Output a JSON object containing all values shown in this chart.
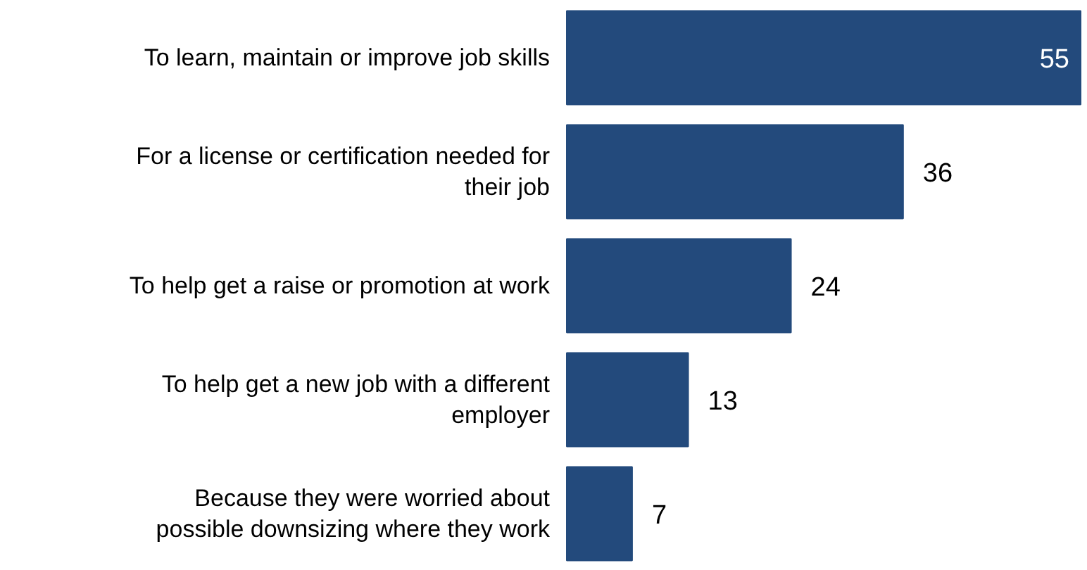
{
  "chart_data": {
    "type": "bar",
    "orientation": "horizontal",
    "data_labels": true,
    "color": "#234a7c",
    "categories": [
      "To learn, maintain or improve job skills",
      "For a license or certification needed for\ntheir job",
      "To help get a raise or promotion at work",
      "To help get a new job with a different\nemployer",
      "Because they were worried about\npossible downsizing where they work"
    ],
    "values": [
      55,
      36,
      24,
      13,
      7
    ]
  }
}
